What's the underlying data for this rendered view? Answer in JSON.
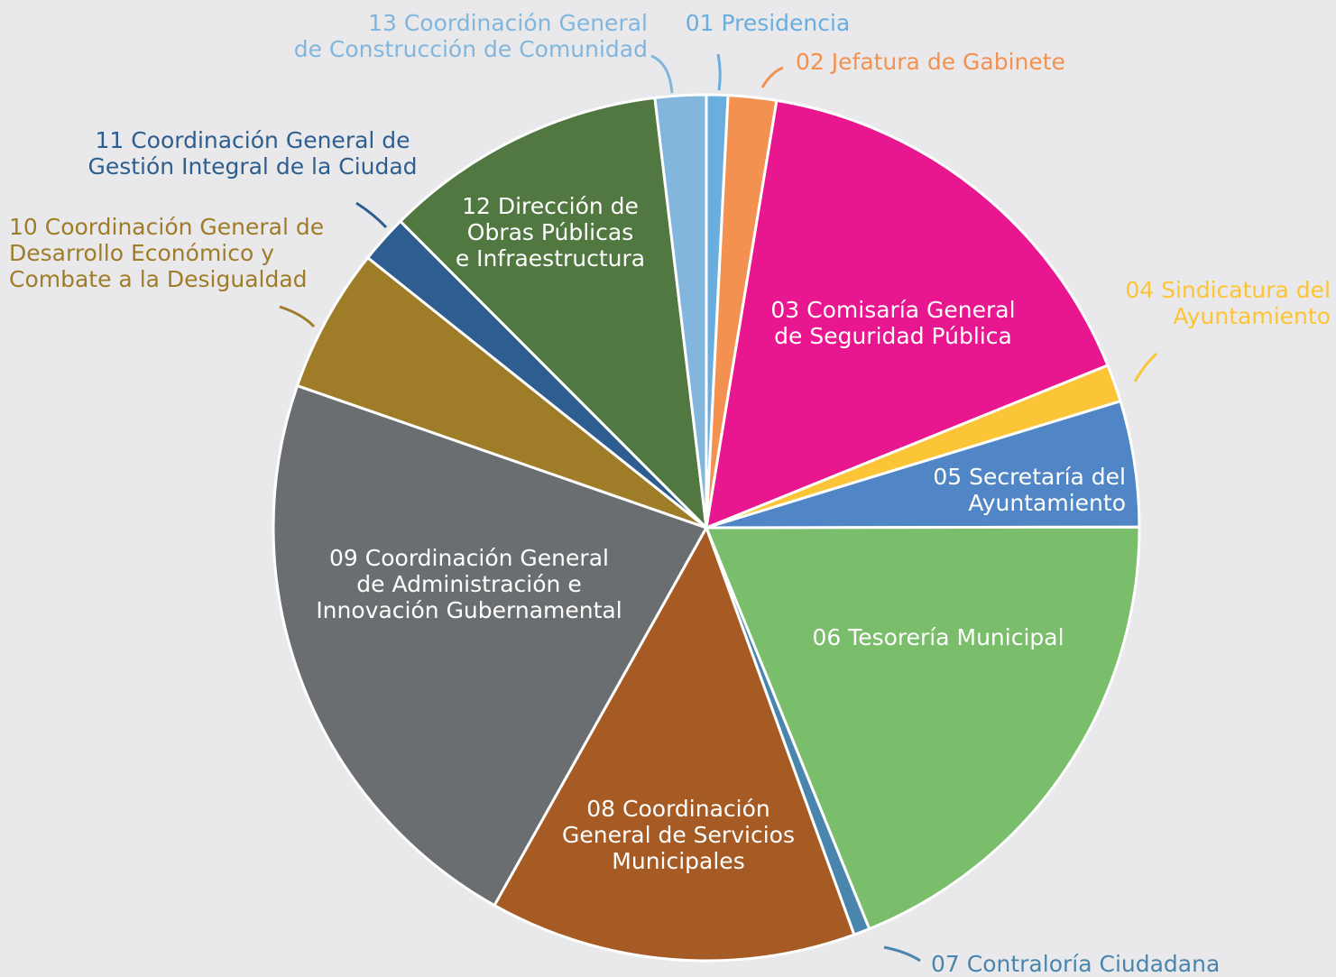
{
  "chart_data": {
    "type": "pie",
    "categories": [
      "01 Presidencia",
      "02 Jefatura de Gabinete",
      "03 Comisaría General\nde Seguridad Pública",
      "04 Sindicatura del\nAyuntamiento",
      "05 Secretaría del\nAyuntamiento",
      "06 Tesorería Municipal",
      "07 Contraloría Ciudadana",
      "08 Coordinación\nGeneral de Servicios\nMunicipales",
      "09 Coordinación General\nde Administración e\nInnovación Gubernamental",
      "10 Coordinación General de\nDesarrollo Económico y\nCombate a la Desigualdad",
      "11 Coordinación General de\nGestión Integral de la Ciudad",
      "12 Dirección de\nObras Públicas\ne Infraestructura",
      "13 Coordinación General\nde Construcción de Comunidad"
    ],
    "values": [
      0.8,
      1.8,
      16.3,
      1.4,
      4.7,
      18.9,
      0.6,
      13.7,
      22.2,
      5.4,
      1.8,
      10.6,
      1.9
    ],
    "colors": [
      "#6aaee0",
      "#f39150",
      "#e8168f",
      "#fcc437",
      "#5186c6",
      "#7abd6a",
      "#4a85ad",
      "#a65b25",
      "#6b6e70",
      "#9f7c28",
      "#2d5e8f",
      "#507840",
      "#82b6dc"
    ]
  }
}
